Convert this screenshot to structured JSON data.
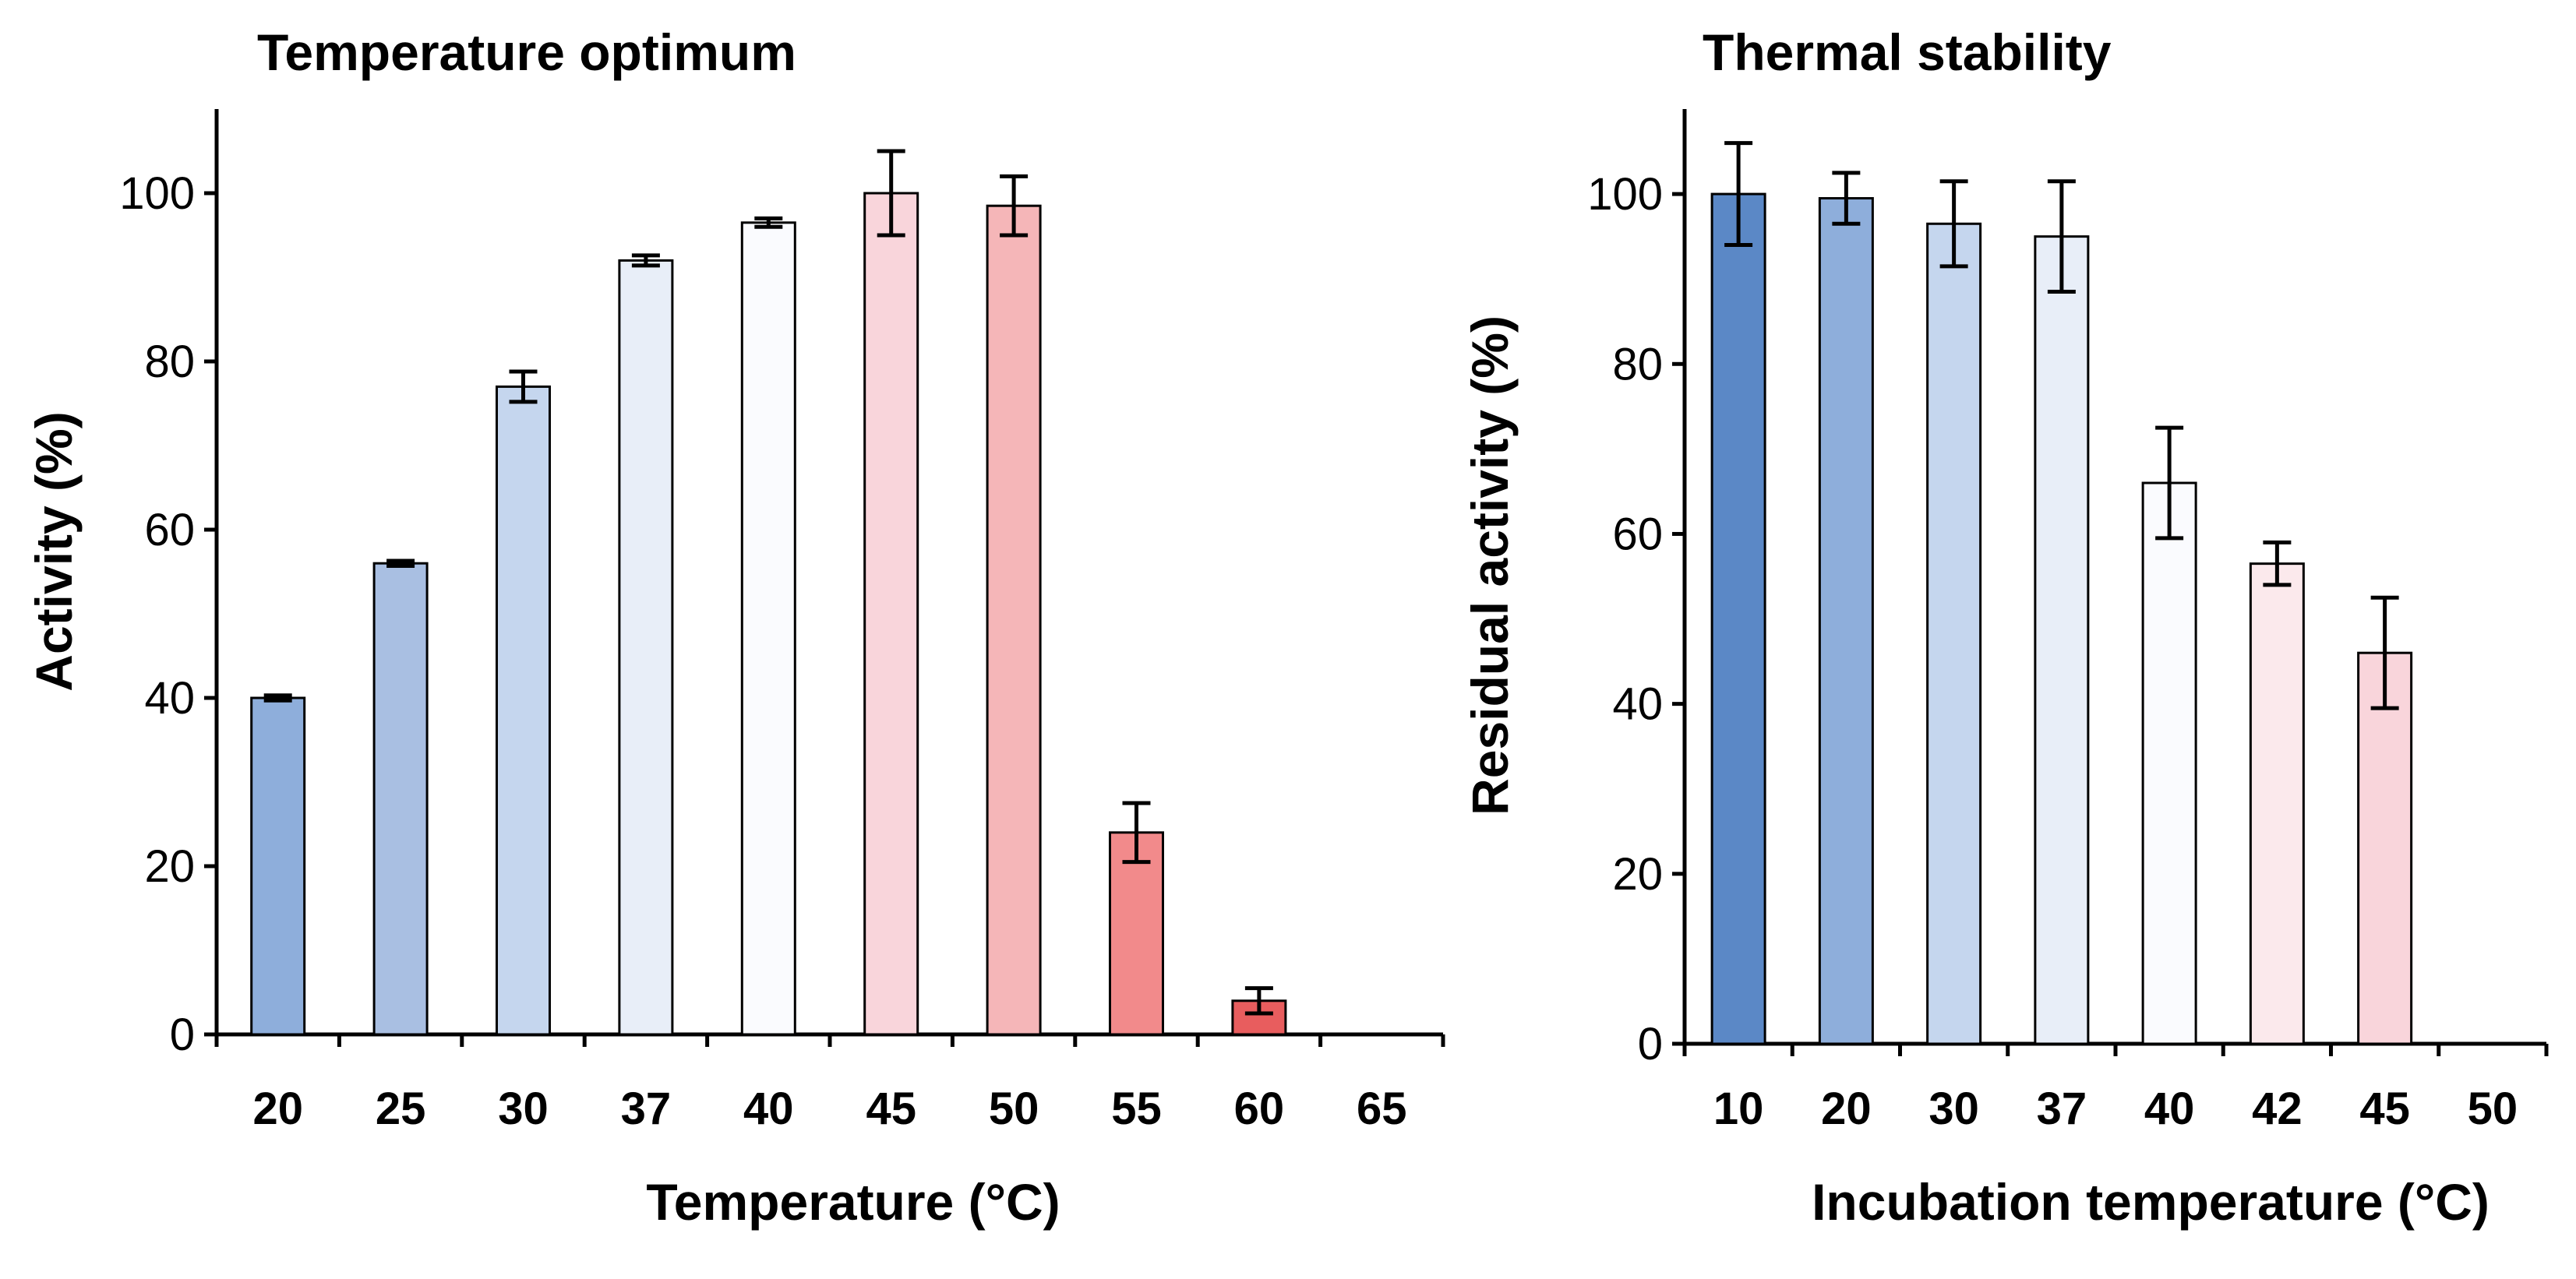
{
  "chart_data": [
    {
      "type": "bar",
      "title": "Temperature optimum",
      "xlabel": "Temperature (°C)",
      "ylabel": "Activity (%)",
      "ylim": [
        0,
        110
      ],
      "yticks": [
        0,
        20,
        40,
        60,
        80,
        100
      ],
      "categories": [
        "20",
        "25",
        "30",
        "37",
        "40",
        "45",
        "50",
        "55",
        "60",
        "65"
      ],
      "values": [
        40,
        56,
        77,
        92,
        96.5,
        100,
        98.5,
        24,
        4,
        0
      ],
      "errors": [
        0.3,
        0.3,
        1.8,
        0.6,
        0.5,
        5,
        3.5,
        3.5,
        1.5,
        0
      ],
      "colors": [
        "#8eaedb",
        "#a9bfe2",
        "#c5d6ee",
        "#e8eef8",
        "#fafbfe",
        "#f9d5db",
        "#f5b6b8",
        "#f28a8b",
        "#e85d5e",
        "#ffffff"
      ],
      "grid": false,
      "legend": "none"
    },
    {
      "type": "bar",
      "title": "Thermal stability",
      "xlabel": "Incubation temperature (°C)",
      "ylabel": "Residual activity (%)",
      "ylim": [
        0,
        110
      ],
      "yticks": [
        0,
        20,
        40,
        60,
        80,
        100
      ],
      "categories": [
        "10",
        "20",
        "30",
        "37",
        "40",
        "42",
        "45",
        "50"
      ],
      "values": [
        100,
        99.5,
        96.5,
        95,
        66,
        56.5,
        46,
        0
      ],
      "errors": [
        6,
        3,
        5,
        6.5,
        6.5,
        2.5,
        6.5,
        0
      ],
      "colors": [
        "#5b88c6",
        "#8eaedb",
        "#c5d6ee",
        "#e8eef8",
        "#fafbfe",
        "#fbe9ec",
        "#f9d5db",
        "#ffffff"
      ],
      "grid": false,
      "legend": "none"
    }
  ]
}
